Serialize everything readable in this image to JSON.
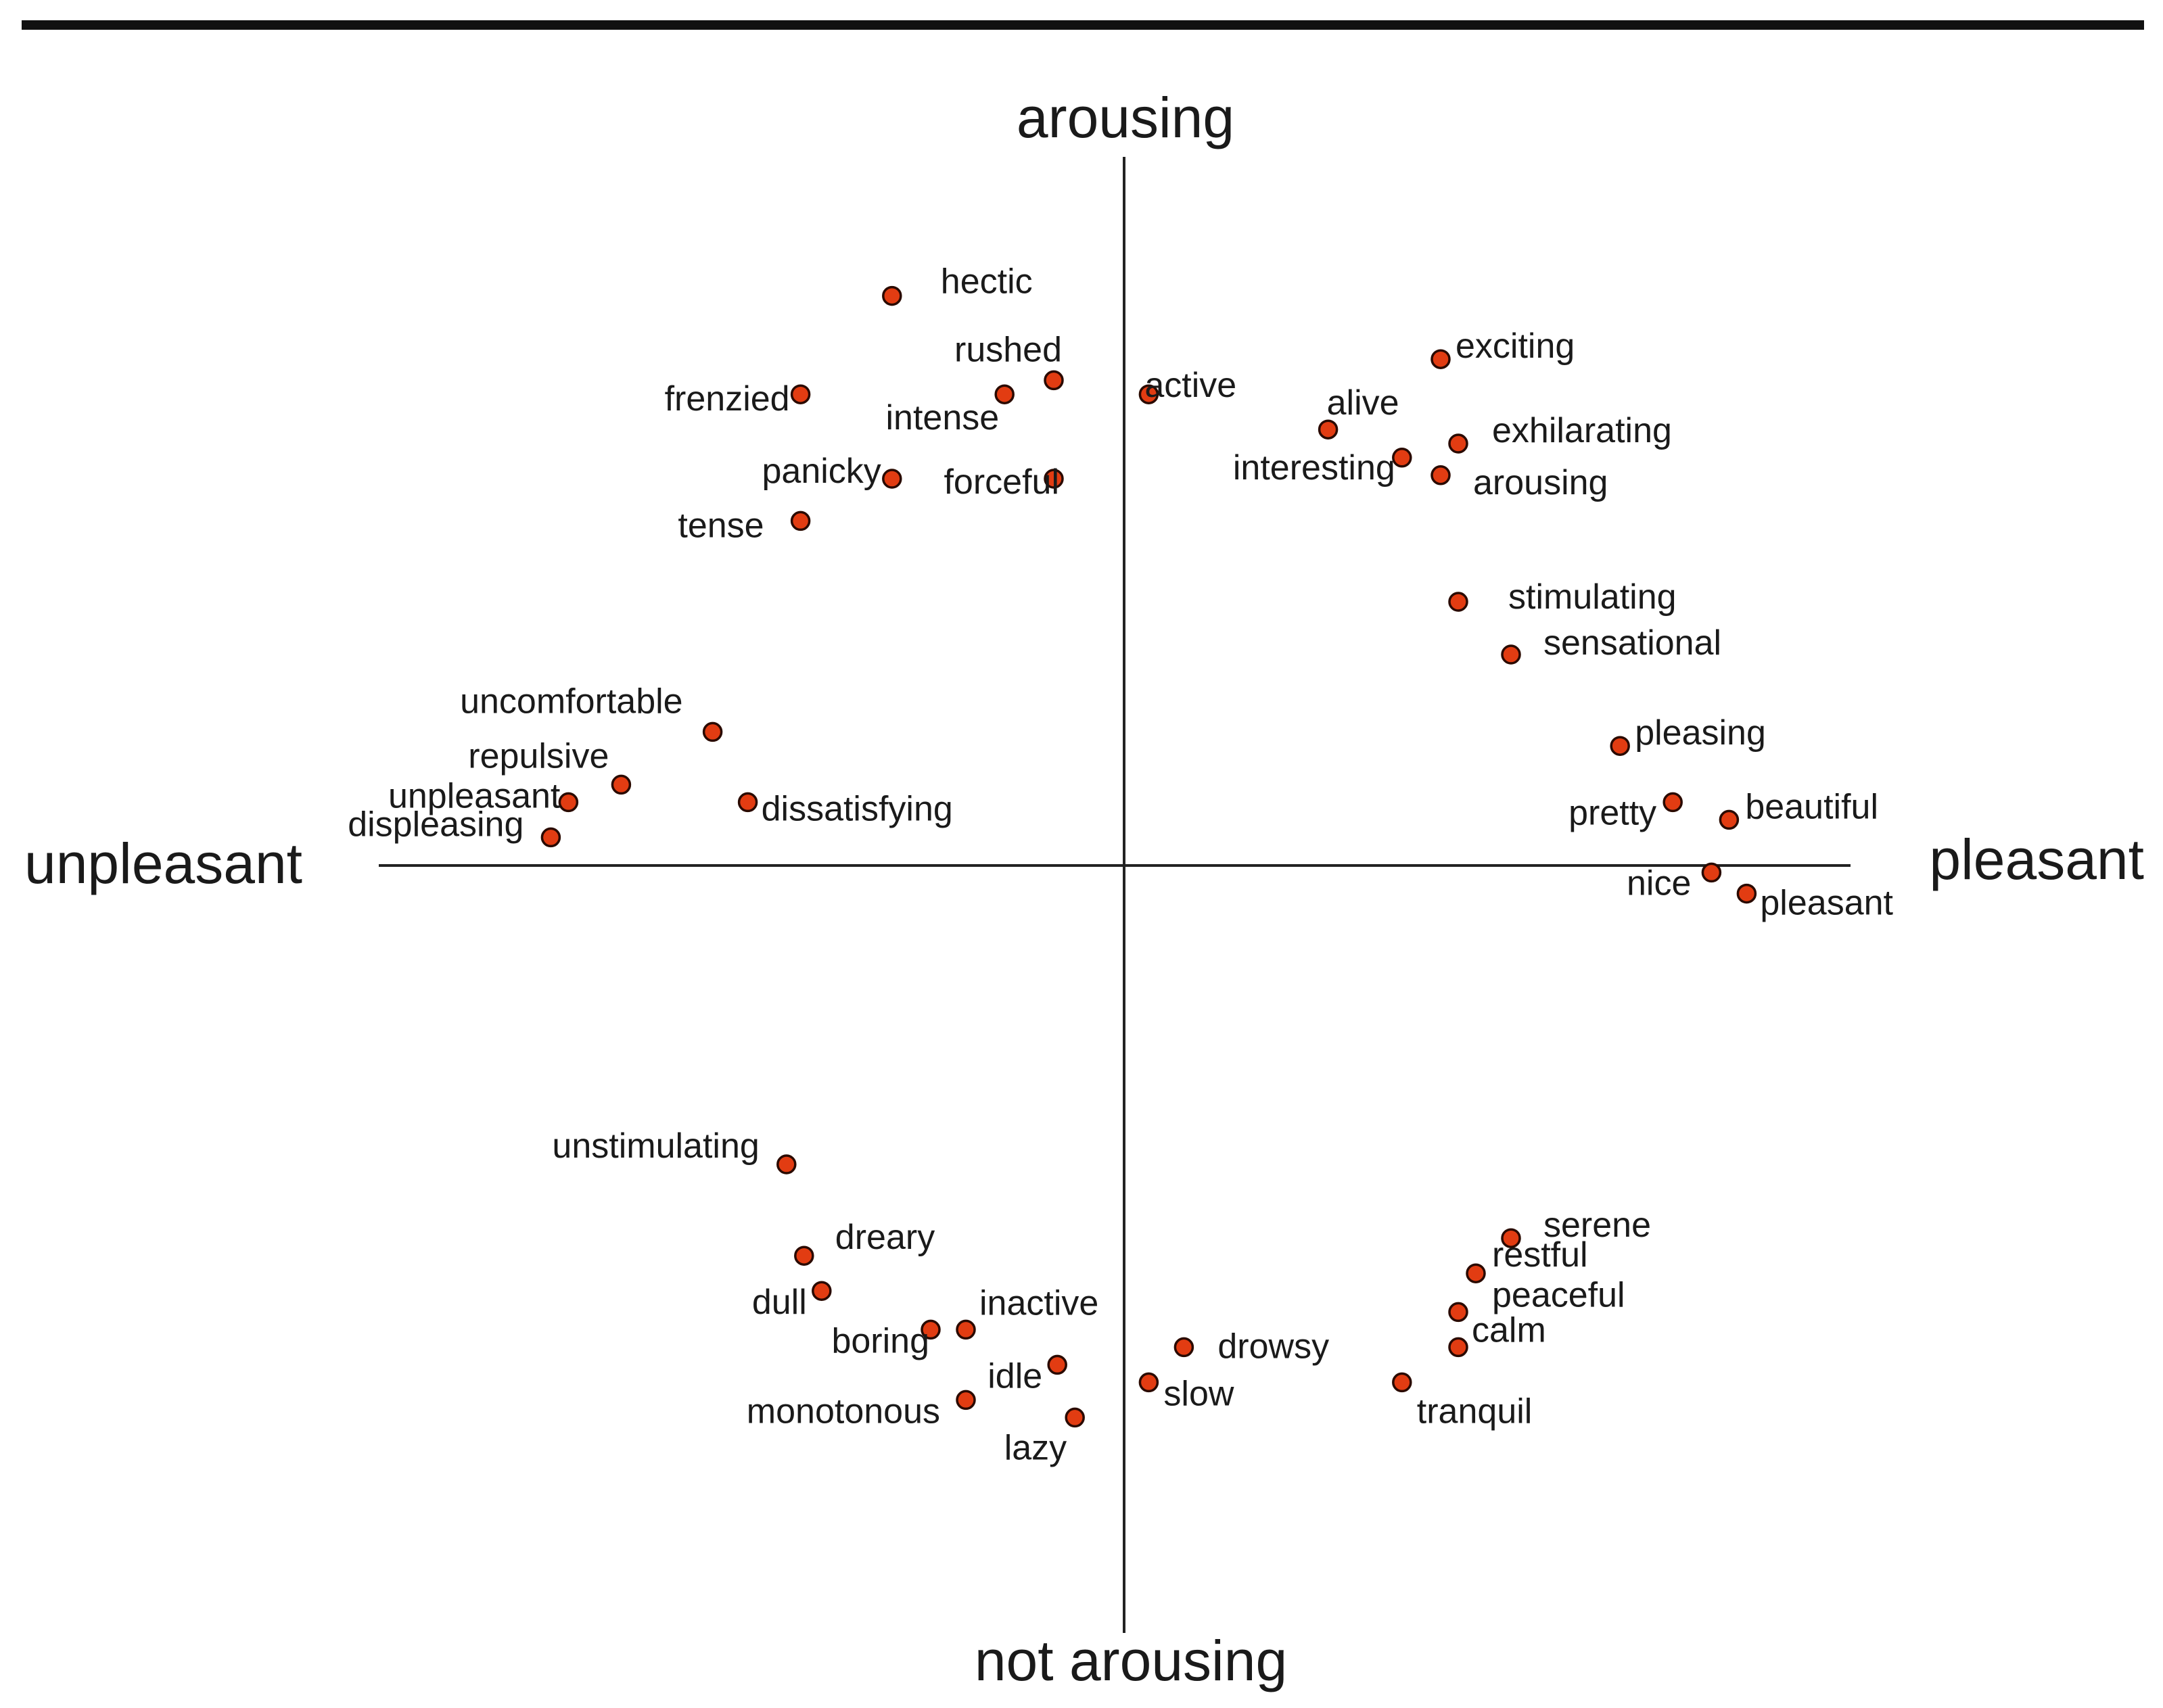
{
  "chart_data": {
    "type": "scatter",
    "title": "",
    "xlabel": "",
    "ylabel": "",
    "axis_labels": {
      "left": "unpleasant",
      "right": "pleasant",
      "top": "arousing",
      "bottom": "not arousing"
    },
    "xlim": [
      -1.05,
      1.05
    ],
    "ylim": [
      -1.05,
      1.05
    ],
    "grid": false,
    "legend": "none",
    "point_color": "#e23c12",
    "points": [
      {
        "label": "hectic",
        "x": -0.33,
        "y": 0.81
      },
      {
        "label": "rushed",
        "x": -0.1,
        "y": 0.69
      },
      {
        "label": "frenzied",
        "x": -0.46,
        "y": 0.67
      },
      {
        "label": "intense",
        "x": -0.17,
        "y": 0.67
      },
      {
        "label": "panicky",
        "x": -0.33,
        "y": 0.55
      },
      {
        "label": "forceful",
        "x": -0.1,
        "y": 0.55
      },
      {
        "label": "tense",
        "x": -0.46,
        "y": 0.49
      },
      {
        "label": "active",
        "x": 0.035,
        "y": 0.67
      },
      {
        "label": "exciting",
        "x": 0.45,
        "y": 0.72
      },
      {
        "label": "alive",
        "x": 0.29,
        "y": 0.62
      },
      {
        "label": "exhilarating",
        "x": 0.475,
        "y": 0.6
      },
      {
        "label": "interesting",
        "x": 0.395,
        "y": 0.58
      },
      {
        "label": "arousing",
        "x": 0.45,
        "y": 0.555
      },
      {
        "label": "stimulating",
        "x": 0.475,
        "y": 0.375
      },
      {
        "label": "sensational",
        "x": 0.55,
        "y": 0.3
      },
      {
        "label": "uncomfortable",
        "x": -0.585,
        "y": 0.19
      },
      {
        "label": "repulsive",
        "x": -0.715,
        "y": 0.115
      },
      {
        "label": "unpleasant",
        "x": -0.79,
        "y": 0.09
      },
      {
        "label": "displeasing",
        "x": -0.815,
        "y": 0.04
      },
      {
        "label": "dissatisfying",
        "x": -0.535,
        "y": 0.09
      },
      {
        "label": "pleasing",
        "x": 0.705,
        "y": 0.17
      },
      {
        "label": "pretty",
        "x": 0.78,
        "y": 0.09
      },
      {
        "label": "beautiful",
        "x": 0.86,
        "y": 0.065
      },
      {
        "label": "nice",
        "x": 0.835,
        "y": -0.01
      },
      {
        "label": "pleasant",
        "x": 0.885,
        "y": -0.04
      },
      {
        "label": "unstimulating",
        "x": -0.48,
        "y": -0.425
      },
      {
        "label": "dreary",
        "x": -0.455,
        "y": -0.555
      },
      {
        "label": "dull",
        "x": -0.43,
        "y": -0.605
      },
      {
        "label": "boring",
        "x": -0.275,
        "y": -0.66
      },
      {
        "label": "inactive",
        "x": -0.225,
        "y": -0.66
      },
      {
        "label": "idle",
        "x": -0.095,
        "y": -0.71
      },
      {
        "label": "monotonous",
        "x": -0.225,
        "y": -0.76
      },
      {
        "label": "lazy",
        "x": -0.07,
        "y": -0.785
      },
      {
        "label": "drowsy",
        "x": 0.085,
        "y": -0.685
      },
      {
        "label": "slow",
        "x": 0.035,
        "y": -0.735
      },
      {
        "label": "serene",
        "x": 0.55,
        "y": -0.53
      },
      {
        "label": "restful",
        "x": 0.5,
        "y": -0.58
      },
      {
        "label": "peaceful",
        "x": 0.475,
        "y": -0.635
      },
      {
        "label": "calm",
        "x": 0.475,
        "y": -0.685
      },
      {
        "label": "tranquil",
        "x": 0.395,
        "y": -0.735
      }
    ]
  }
}
